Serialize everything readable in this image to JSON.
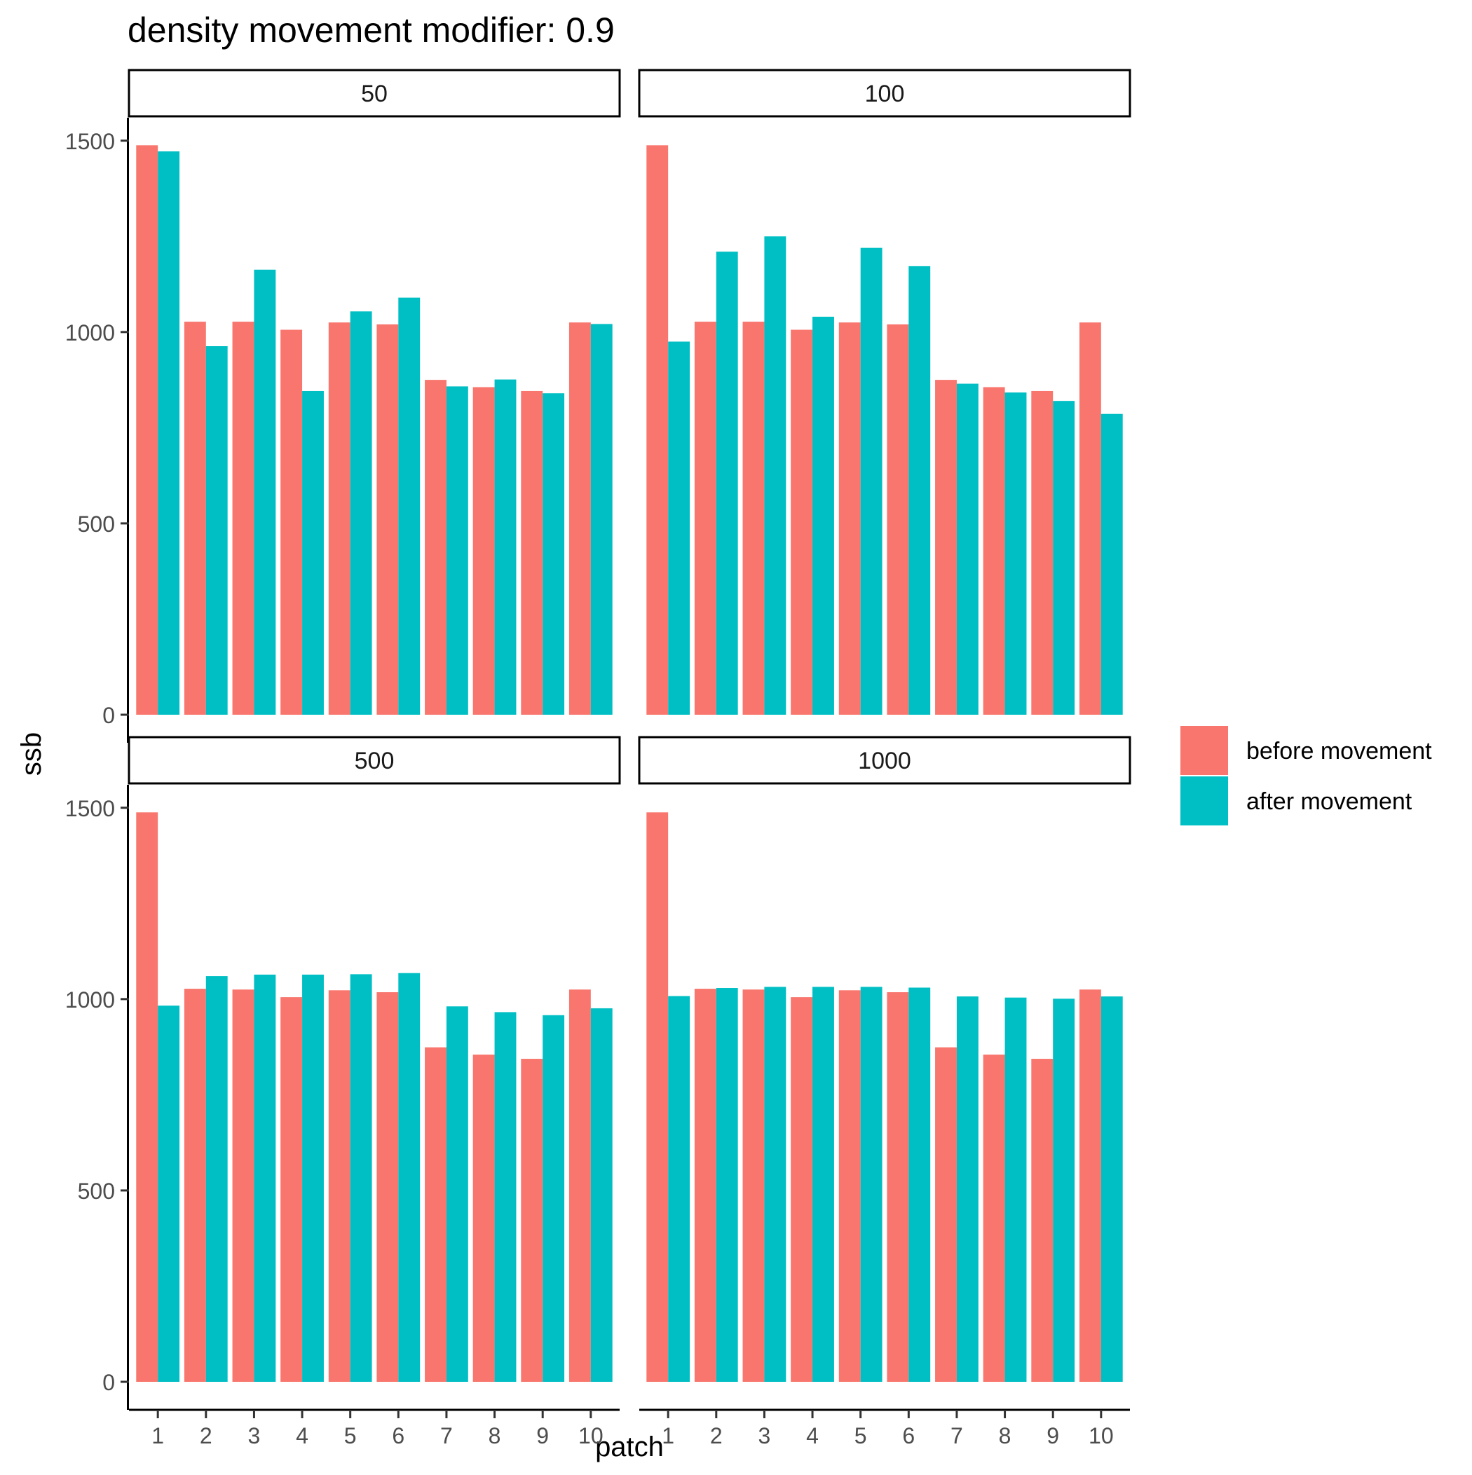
{
  "chart_data": {
    "type": "bar",
    "title": "density movement modifier: 0.9",
    "xlabel": "patch",
    "ylabel": "ssb",
    "ylim": [
      0,
      1560
    ],
    "yticks": [
      0,
      500,
      1000,
      1500
    ],
    "categories": [
      "1",
      "2",
      "3",
      "4",
      "5",
      "6",
      "7",
      "8",
      "9",
      "10"
    ],
    "grid": false,
    "legend_position": "right",
    "colors": {
      "before": "#F8766D",
      "after": "#00BFC4"
    },
    "legend": [
      "before movement",
      "after movement"
    ],
    "panels": [
      {
        "label": "50",
        "series": [
          {
            "name": "before movement",
            "values": [
              1488,
              1027,
              1027,
              1006,
              1025,
              1020,
              875,
              856,
              846,
              1025
            ]
          },
          {
            "name": "after movement",
            "values": [
              1472,
              963,
              1163,
              846,
              1054,
              1090,
              858,
              876,
              840,
              1021
            ]
          }
        ]
      },
      {
        "label": "100",
        "series": [
          {
            "name": "before movement",
            "values": [
              1488,
              1027,
              1027,
              1006,
              1025,
              1020,
              875,
              856,
              846,
              1025
            ]
          },
          {
            "name": "after movement",
            "values": [
              975,
              1210,
              1250,
              1040,
              1220,
              1172,
              865,
              842,
              820,
              786
            ]
          }
        ]
      },
      {
        "label": "500",
        "series": [
          {
            "name": "before movement",
            "values": [
              1488,
              1027,
              1025,
              1005,
              1023,
              1018,
              874,
              855,
              844,
              1025
            ]
          },
          {
            "name": "after movement",
            "values": [
              983,
              1060,
              1064,
              1064,
              1065,
              1068,
              981,
              966,
              958,
              976
            ]
          }
        ]
      },
      {
        "label": "1000",
        "series": [
          {
            "name": "before movement",
            "values": [
              1488,
              1027,
              1025,
              1005,
              1023,
              1018,
              874,
              855,
              844,
              1025
            ]
          },
          {
            "name": "after movement",
            "values": [
              1008,
              1029,
              1032,
              1032,
              1032,
              1030,
              1007,
              1004,
              1001,
              1007
            ]
          }
        ]
      }
    ]
  }
}
